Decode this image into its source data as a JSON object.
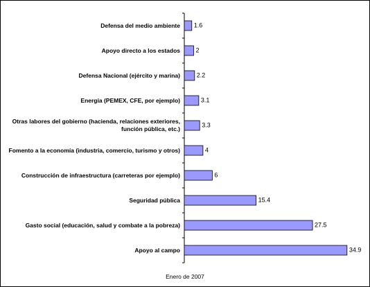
{
  "chart_data": {
    "type": "bar",
    "orientation": "horizontal",
    "categories": [
      "Defensa del medio ambiente",
      "Apoyo directo a los estados",
      "Defensa Nacional (ejército y marina)",
      "Energía (PEMEX, CFE, por ejemplo)",
      "Otras labores del gobierno (hacienda, relaciones exteriores, función pública, etc.)",
      "Fomento a la economía (industria, comercio, turismo y otros)",
      "Construcción de infraestructura (carreteras por ejemplo)",
      "Seguridad pública",
      "Gasto social (educación, salud y combate a la pobreza)",
      "Apoyo al campo"
    ],
    "values": [
      1.6,
      2,
      2.2,
      3.1,
      3.3,
      4,
      6,
      15.4,
      27.5,
      34.9
    ],
    "color": "#9999ff",
    "xlim": [
      0,
      35
    ],
    "annotation": "Enero de 2007"
  }
}
